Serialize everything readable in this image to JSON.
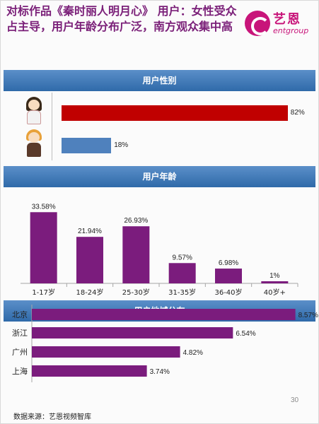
{
  "headline": "对标作品《秦时丽人明月心》 用户：女性受众占主导，用户年龄分布广泛，南方观众集中高",
  "logo": {
    "cn": "艺恩",
    "en": "entgroup"
  },
  "sections": {
    "gender": "用户性别",
    "age": "用户年龄",
    "region": "用户地域分布"
  },
  "chart_data": [
    {
      "type": "bar",
      "orientation": "horizontal",
      "title": "用户性别",
      "categories": [
        "female",
        "male"
      ],
      "values": [
        82,
        18
      ],
      "value_labels": [
        "82%",
        "18%"
      ],
      "unit": "%",
      "xlim": [
        0,
        100
      ],
      "colors": [
        "#c00000",
        "#4f81bd"
      ],
      "category_icons": [
        "female-user-icon",
        "male-user-icon"
      ]
    },
    {
      "type": "bar",
      "title": "用户年龄",
      "categories": [
        "1-17岁",
        "18-24岁",
        "25-30岁",
        "31-35岁",
        "36-40岁",
        "40岁+"
      ],
      "values": [
        33.58,
        21.94,
        26.93,
        9.57,
        6.98,
        1
      ],
      "value_labels": [
        "33.58%",
        "21.94%",
        "26.93%",
        "9.57%",
        "6.98%",
        "1%"
      ],
      "unit": "%",
      "ylim": [
        0,
        36
      ],
      "color": "#7b1c7d"
    },
    {
      "type": "bar",
      "orientation": "horizontal",
      "title": "用户地域分布",
      "categories": [
        "北京",
        "浙江",
        "广州",
        "上海"
      ],
      "values": [
        8.57,
        6.54,
        4.82,
        3.74
      ],
      "value_labels": [
        "8.57%",
        "6.54%",
        "4.82%",
        "3.74%"
      ],
      "unit": "%",
      "xlim": [
        0,
        9.2
      ],
      "color": "#7b1c7d"
    }
  ],
  "footer": {
    "source": "数据来源：艺恩视频智库",
    "page_number": "30"
  }
}
